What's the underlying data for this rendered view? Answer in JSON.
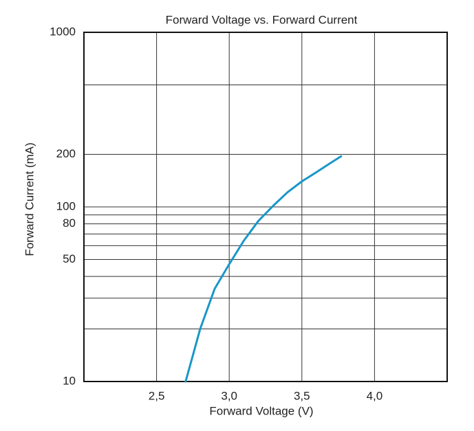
{
  "chart_data": {
    "type": "line",
    "title": "Forward Voltage vs. Forward Current",
    "x_label": "Forward Voltage (V)",
    "y_label": "Forward Current (mA)",
    "x": [
      2.7,
      2.8,
      2.9,
      3.0,
      3.1,
      3.2,
      3.3,
      3.4,
      3.5,
      3.6,
      3.7,
      3.77
    ],
    "values": [
      10,
      20,
      34,
      47,
      64,
      83,
      101,
      121,
      140,
      158,
      179,
      195
    ],
    "color": "#1a96c8",
    "xlim": [
      2.0,
      4.5
    ],
    "xticks": [
      {
        "value": 2.5,
        "label": "2,5"
      },
      {
        "value": 3.0,
        "label": "3,0"
      },
      {
        "value": 3.5,
        "label": "3,5"
      },
      {
        "value": 4.0,
        "label": "4,0"
      }
    ],
    "ylim": [
      10,
      1000
    ],
    "yticks": [
      10,
      50,
      80,
      100,
      200,
      1000
    ],
    "minor_yticks": [
      20,
      30,
      40,
      60,
      70,
      90,
      500
    ],
    "y_scale": "log",
    "grid": true
  }
}
